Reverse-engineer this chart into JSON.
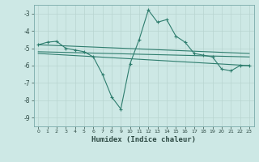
{
  "title": "",
  "xlabel": "Humidex (Indice chaleur)",
  "bg_color": "#cde8e5",
  "line_color": "#2e7d6e",
  "grid_color": "#b8d4d0",
  "xlim": [
    -0.5,
    23.5
  ],
  "ylim": [
    -9.5,
    -2.5
  ],
  "yticks": [
    -3,
    -4,
    -5,
    -6,
    -7,
    -8,
    -9
  ],
  "xticks": [
    0,
    1,
    2,
    3,
    4,
    5,
    6,
    7,
    8,
    9,
    10,
    11,
    12,
    13,
    14,
    15,
    16,
    17,
    18,
    19,
    20,
    21,
    22,
    23
  ],
  "series": [
    [
      0,
      -4.8
    ],
    [
      1,
      -4.65
    ],
    [
      2,
      -4.6
    ],
    [
      3,
      -5.0
    ],
    [
      4,
      -5.1
    ],
    [
      5,
      -5.2
    ],
    [
      6,
      -5.5
    ],
    [
      7,
      -6.5
    ],
    [
      8,
      -7.8
    ],
    [
      9,
      -8.5
    ],
    [
      10,
      -5.9
    ],
    [
      11,
      -4.5
    ],
    [
      12,
      -2.8
    ],
    [
      13,
      -3.5
    ],
    [
      14,
      -3.35
    ],
    [
      15,
      -4.3
    ],
    [
      16,
      -4.65
    ],
    [
      17,
      -5.3
    ],
    [
      18,
      -5.4
    ],
    [
      19,
      -5.5
    ],
    [
      20,
      -6.2
    ],
    [
      21,
      -6.3
    ],
    [
      22,
      -6.0
    ],
    [
      23,
      -6.0
    ]
  ],
  "line2": [
    [
      0,
      -4.8
    ],
    [
      23,
      -5.3
    ]
  ],
  "line3": [
    [
      0,
      -5.2
    ],
    [
      23,
      -5.5
    ]
  ],
  "line4": [
    [
      0,
      -5.3
    ],
    [
      23,
      -6.0
    ]
  ]
}
